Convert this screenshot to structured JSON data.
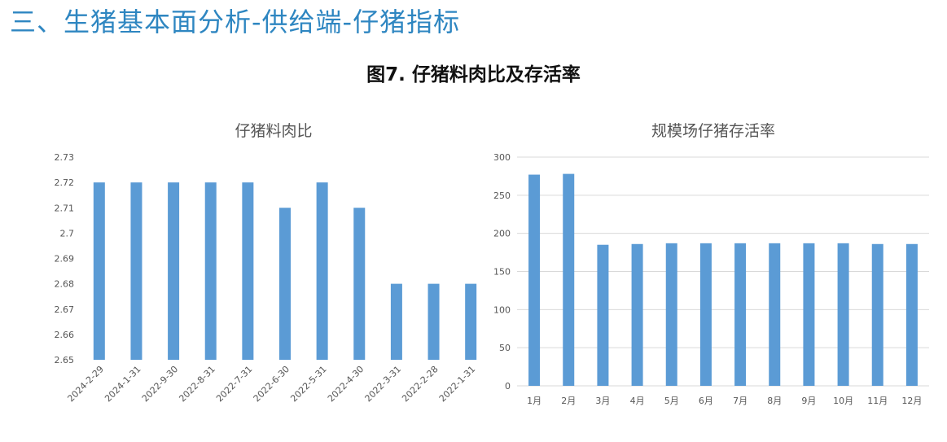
{
  "heading": "三、生猪基本面分析-供给端-仔猪指标",
  "figure_title": "图7. 仔猪料肉比及存活率",
  "colors": {
    "heading": "#2e86c1",
    "bar": "#5b9bd5",
    "grid": "#d9d9d9"
  },
  "chart_data": [
    {
      "type": "bar",
      "title": "仔猪料肉比",
      "categories": [
        "2024-2-29",
        "2024-1-31",
        "2022-9-30",
        "2022-8-31",
        "2022-7-31",
        "2022-6-30",
        "2022-5-31",
        "2022-4-30",
        "2022-3-31",
        "2022-2-28",
        "2022-1-31"
      ],
      "values": [
        2.72,
        2.72,
        2.72,
        2.72,
        2.72,
        2.71,
        2.72,
        2.71,
        2.68,
        2.68,
        2.68
      ],
      "ylim": [
        2.65,
        2.73
      ],
      "yticks": [
        "2.65",
        "2.66",
        "2.67",
        "2.68",
        "2.69",
        "2.7",
        "2.71",
        "2.72",
        "2.73"
      ],
      "grid": false,
      "xlabel": "",
      "ylabel": ""
    },
    {
      "type": "bar",
      "title": "规模场仔猪存活率",
      "categories": [
        "1月",
        "2月",
        "3月",
        "4月",
        "5月",
        "6月",
        "7月",
        "8月",
        "9月",
        "10月",
        "11月",
        "12月"
      ],
      "values": [
        277,
        278,
        185,
        186,
        187,
        187,
        187,
        187,
        187,
        187,
        186,
        186
      ],
      "ylim": [
        0,
        300
      ],
      "yticks": [
        "0",
        "50",
        "100",
        "150",
        "200",
        "250",
        "300"
      ],
      "grid": true,
      "xlabel": "",
      "ylabel": ""
    }
  ]
}
